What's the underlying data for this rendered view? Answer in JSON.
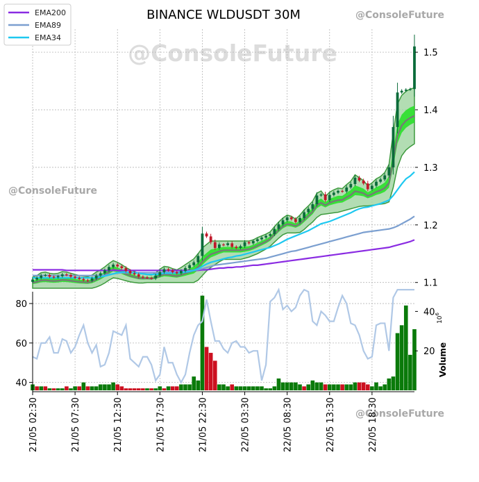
{
  "title": "BINANCE WLDUSDT 30M",
  "watermarks": {
    "center": "@ConsoleFuture",
    "left": "@ConsoleFuture",
    "top_right": "@ConsoleFuture",
    "bottom_right": "@ConsoleFuture"
  },
  "legend": [
    {
      "label": "EMA200",
      "color": "#8a2be2"
    },
    {
      "label": "EMA89",
      "color": "#7b9fd0"
    },
    {
      "label": "EMA34",
      "color": "#1ec8f0"
    }
  ],
  "colors": {
    "up": "#0a6b3a",
    "down": "#c0182a",
    "vol_up": "#0a7a0a",
    "vol_down": "#cc1020",
    "band_fill": "#9fd4a0",
    "band_edge": "#3d9a3d",
    "band_core": "#22e022",
    "band_mid": "#777777",
    "rsi_line": "#b0c8e6"
  },
  "chart_data": [
    {
      "type": "candlestick",
      "title": "BINANCE WLDUSDT 30M",
      "ylim": [
        1.09,
        1.54
      ],
      "yticks": [
        "1.1",
        "1.2",
        "1.3",
        "1.4",
        "1.5"
      ],
      "grid": true,
      "legend_position": "top-left",
      "x_tick_labels": [
        "21/05 02:30",
        "21/05 07:30",
        "21/05 12:30",
        "21/05 17:30",
        "21/05 22:30",
        "22/05 03:30",
        "22/05 08:30",
        "22/05 13:30",
        "22/05 18:30"
      ],
      "x_tick_index": [
        0,
        10,
        20,
        30,
        40,
        50,
        60,
        70,
        80
      ],
      "close": [
        1.105,
        1.108,
        1.112,
        1.113,
        1.11,
        1.109,
        1.111,
        1.114,
        1.113,
        1.11,
        1.108,
        1.106,
        1.104,
        1.103,
        1.107,
        1.112,
        1.116,
        1.121,
        1.127,
        1.131,
        1.128,
        1.125,
        1.12,
        1.116,
        1.114,
        1.11,
        1.109,
        1.108,
        1.107,
        1.112,
        1.118,
        1.123,
        1.121,
        1.118,
        1.116,
        1.12,
        1.125,
        1.13,
        1.135,
        1.146,
        1.185,
        1.18,
        1.17,
        1.16,
        1.166,
        1.165,
        1.168,
        1.162,
        1.16,
        1.163,
        1.17,
        1.168,
        1.172,
        1.175,
        1.178,
        1.181,
        1.184,
        1.193,
        1.201,
        1.208,
        1.213,
        1.21,
        1.205,
        1.212,
        1.222,
        1.228,
        1.236,
        1.251,
        1.253,
        1.243,
        1.252,
        1.256,
        1.259,
        1.258,
        1.265,
        1.271,
        1.282,
        1.277,
        1.272,
        1.262,
        1.268,
        1.275,
        1.279,
        1.286,
        1.3,
        1.37,
        1.43,
        1.433,
        1.435,
        1.436,
        1.51
      ],
      "ema200": [
        1.122,
        1.122,
        1.122,
        1.122,
        1.122,
        1.122,
        1.122,
        1.122,
        1.121,
        1.121,
        1.121,
        1.121,
        1.121,
        1.121,
        1.121,
        1.121,
        1.121,
        1.121,
        1.121,
        1.121,
        1.121,
        1.121,
        1.121,
        1.121,
        1.121,
        1.121,
        1.121,
        1.121,
        1.121,
        1.121,
        1.121,
        1.121,
        1.121,
        1.121,
        1.121,
        1.121,
        1.121,
        1.121,
        1.121,
        1.121,
        1.122,
        1.122,
        1.123,
        1.124,
        1.125,
        1.125,
        1.126,
        1.126,
        1.127,
        1.127,
        1.128,
        1.129,
        1.13,
        1.13,
        1.131,
        1.132,
        1.133,
        1.134,
        1.135,
        1.136,
        1.137,
        1.138,
        1.139,
        1.14,
        1.141,
        1.142,
        1.143,
        1.144,
        1.145,
        1.146,
        1.147,
        1.148,
        1.149,
        1.15,
        1.151,
        1.152,
        1.153,
        1.154,
        1.155,
        1.156,
        1.157,
        1.158,
        1.159,
        1.16,
        1.161,
        1.163,
        1.165,
        1.167,
        1.169,
        1.171,
        1.174
      ],
      "ema89": [
        1.112,
        1.112,
        1.112,
        1.112,
        1.112,
        1.112,
        1.112,
        1.112,
        1.112,
        1.112,
        1.112,
        1.112,
        1.112,
        1.112,
        1.112,
        1.112,
        1.113,
        1.113,
        1.114,
        1.115,
        1.116,
        1.117,
        1.117,
        1.117,
        1.117,
        1.117,
        1.117,
        1.117,
        1.117,
        1.117,
        1.117,
        1.118,
        1.118,
        1.118,
        1.118,
        1.119,
        1.119,
        1.12,
        1.121,
        1.122,
        1.124,
        1.126,
        1.128,
        1.13,
        1.131,
        1.132,
        1.133,
        1.134,
        1.135,
        1.136,
        1.137,
        1.138,
        1.139,
        1.14,
        1.141,
        1.142,
        1.144,
        1.146,
        1.148,
        1.15,
        1.152,
        1.154,
        1.155,
        1.157,
        1.159,
        1.161,
        1.163,
        1.165,
        1.167,
        1.169,
        1.171,
        1.173,
        1.175,
        1.177,
        1.179,
        1.181,
        1.183,
        1.185,
        1.187,
        1.188,
        1.189,
        1.19,
        1.191,
        1.192,
        1.193,
        1.195,
        1.198,
        1.202,
        1.206,
        1.21,
        1.215
      ],
      "ema34": [
        1.108,
        1.108,
        1.108,
        1.108,
        1.108,
        1.108,
        1.108,
        1.108,
        1.108,
        1.108,
        1.108,
        1.108,
        1.108,
        1.108,
        1.108,
        1.108,
        1.11,
        1.111,
        1.113,
        1.115,
        1.117,
        1.118,
        1.118,
        1.117,
        1.117,
        1.116,
        1.115,
        1.114,
        1.114,
        1.114,
        1.115,
        1.116,
        1.116,
        1.116,
        1.116,
        1.117,
        1.118,
        1.119,
        1.121,
        1.124,
        1.128,
        1.132,
        1.135,
        1.137,
        1.139,
        1.141,
        1.143,
        1.144,
        1.146,
        1.147,
        1.149,
        1.151,
        1.153,
        1.155,
        1.157,
        1.159,
        1.161,
        1.164,
        1.167,
        1.171,
        1.175,
        1.178,
        1.181,
        1.184,
        1.187,
        1.19,
        1.194,
        1.198,
        1.202,
        1.204,
        1.206,
        1.209,
        1.212,
        1.215,
        1.218,
        1.221,
        1.225,
        1.228,
        1.23,
        1.231,
        1.233,
        1.235,
        1.237,
        1.24,
        1.243,
        1.251,
        1.261,
        1.271,
        1.28,
        1.285,
        1.292
      ],
      "band_upper": [
        1.109,
        1.112,
        1.117,
        1.118,
        1.116,
        1.115,
        1.116,
        1.119,
        1.118,
        1.116,
        1.114,
        1.112,
        1.111,
        1.11,
        1.113,
        1.118,
        1.122,
        1.127,
        1.133,
        1.138,
        1.135,
        1.131,
        1.126,
        1.122,
        1.119,
        1.116,
        1.115,
        1.114,
        1.113,
        1.117,
        1.123,
        1.128,
        1.127,
        1.124,
        1.122,
        1.126,
        1.131,
        1.136,
        1.141,
        1.15,
        1.16,
        1.166,
        1.172,
        1.172,
        1.172,
        1.172,
        1.172,
        1.172,
        1.172,
        1.172,
        1.172,
        1.172,
        1.174,
        1.178,
        1.181,
        1.184,
        1.188,
        1.197,
        1.205,
        1.212,
        1.217,
        1.215,
        1.21,
        1.217,
        1.226,
        1.233,
        1.241,
        1.255,
        1.259,
        1.249,
        1.257,
        1.261,
        1.264,
        1.263,
        1.27,
        1.276,
        1.287,
        1.282,
        1.277,
        1.268,
        1.273,
        1.28,
        1.284,
        1.291,
        1.305,
        1.36,
        1.41,
        1.425,
        1.432,
        1.436,
        1.438
      ],
      "band_lower": [
        1.09,
        1.09,
        1.09,
        1.09,
        1.09,
        1.09,
        1.09,
        1.09,
        1.09,
        1.09,
        1.09,
        1.09,
        1.09,
        1.09,
        1.09,
        1.092,
        1.095,
        1.099,
        1.104,
        1.108,
        1.107,
        1.105,
        1.103,
        1.101,
        1.1,
        1.099,
        1.099,
        1.1,
        1.1,
        1.1,
        1.1,
        1.1,
        1.1,
        1.1,
        1.1,
        1.1,
        1.1,
        1.1,
        1.1,
        1.104,
        1.112,
        1.12,
        1.126,
        1.131,
        1.136,
        1.14,
        1.14,
        1.14,
        1.14,
        1.14,
        1.142,
        1.144,
        1.147,
        1.15,
        1.154,
        1.158,
        1.163,
        1.17,
        1.177,
        1.183,
        1.186,
        1.186,
        1.186,
        1.187,
        1.192,
        1.199,
        1.205,
        1.213,
        1.218,
        1.219,
        1.22,
        1.221,
        1.222,
        1.224,
        1.226,
        1.228,
        1.23,
        1.232,
        1.233,
        1.233,
        1.234,
        1.235,
        1.236,
        1.237,
        1.24,
        1.265,
        1.3,
        1.32,
        1.33,
        1.336,
        1.341
      ]
    },
    {
      "type": "bar",
      "ylabel": "Volume",
      "ylabel_exponent": "6",
      "ylim": [
        0,
        50
      ],
      "yticks": [
        "20",
        "40"
      ],
      "values": [
        3,
        2,
        2,
        2,
        1,
        1,
        1,
        1,
        2,
        1,
        2,
        2,
        4,
        2,
        2,
        2,
        3,
        3,
        3,
        4,
        3,
        2,
        1,
        1,
        1,
        1,
        1,
        1,
        1,
        1,
        2,
        1,
        2,
        2,
        2,
        3,
        3,
        3,
        7,
        5,
        48,
        22,
        19,
        15,
        3,
        3,
        2,
        3,
        2,
        2,
        2,
        2,
        2,
        2,
        2,
        1,
        1,
        2,
        6,
        4,
        4,
        4,
        4,
        3,
        2,
        3,
        5,
        4,
        4,
        3,
        3,
        3,
        3,
        3,
        3,
        3,
        4,
        4,
        4,
        3,
        2,
        4,
        2,
        3,
        6,
        7,
        29,
        33,
        43,
        18,
        31
      ],
      "direction": [
        "up",
        "down",
        "up",
        "down",
        "up",
        "down",
        "up",
        "up",
        "down",
        "up",
        "up",
        "down",
        "up",
        "down",
        "up",
        "up",
        "up",
        "up",
        "up",
        "up",
        "down",
        "down",
        "down",
        "down",
        "down",
        "down",
        "down",
        "up",
        "down",
        "up",
        "up",
        "down",
        "up",
        "down",
        "down",
        "up",
        "up",
        "up",
        "up",
        "up",
        "up",
        "down",
        "down",
        "down",
        "up",
        "up",
        "up",
        "down",
        "up",
        "up",
        "up",
        "up",
        "up",
        "up",
        "up",
        "up",
        "up",
        "up",
        "up",
        "up",
        "up",
        "up",
        "up",
        "up",
        "down",
        "up",
        "up",
        "up",
        "up",
        "down",
        "up",
        "up",
        "up",
        "down",
        "up",
        "up",
        "up",
        "down",
        "down",
        "down",
        "up",
        "up",
        "up",
        "up",
        "up",
        "up",
        "up",
        "up",
        "up",
        "up",
        "up"
      ]
    },
    {
      "type": "line",
      "ylim": [
        36,
        86
      ],
      "yticks": [
        "40",
        "60",
        "80"
      ],
      "values": [
        53,
        52,
        60,
        60,
        63,
        55,
        55,
        62,
        61,
        55,
        58,
        64,
        69,
        60,
        55,
        59,
        48,
        49,
        55,
        66,
        65,
        64,
        69,
        52,
        50,
        48,
        53,
        53,
        49,
        41,
        44,
        58,
        50,
        50,
        44,
        40,
        44,
        55,
        64,
        69,
        71,
        82,
        71,
        61,
        61,
        57,
        55,
        60,
        61,
        58,
        58,
        55,
        56,
        56,
        41,
        49,
        81,
        83,
        87,
        77,
        79,
        76,
        78,
        84,
        87,
        86,
        71,
        69,
        76,
        74,
        71,
        71,
        78,
        84,
        80,
        70,
        69,
        64,
        56,
        52,
        53,
        69,
        70,
        70,
        56,
        83,
        87,
        87,
        87,
        87,
        87
      ]
    }
  ]
}
